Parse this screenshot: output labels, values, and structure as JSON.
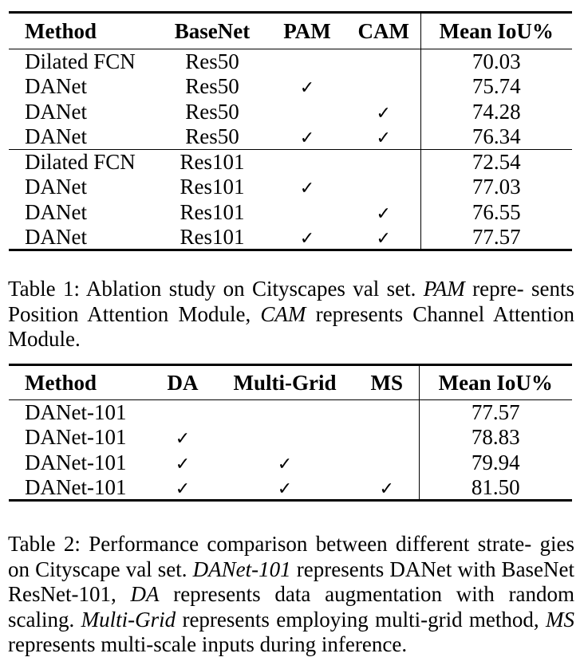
{
  "check_symbol": "✓",
  "table1": {
    "headers": [
      "Method",
      "BaseNet",
      "PAM",
      "CAM",
      "Mean IoU%"
    ],
    "rows": [
      {
        "method": "Dilated FCN",
        "basenet": "Res50",
        "pam": "",
        "cam": "",
        "miou": "70.03"
      },
      {
        "method": "DANet",
        "basenet": "Res50",
        "pam": "✓",
        "cam": "",
        "miou": "75.74"
      },
      {
        "method": "DANet",
        "basenet": "Res50",
        "pam": "",
        "cam": "✓",
        "miou": "74.28"
      },
      {
        "method": "DANet",
        "basenet": "Res50",
        "pam": "✓",
        "cam": "✓",
        "miou": "76.34"
      },
      {
        "method": "Dilated FCN",
        "basenet": "Res101",
        "pam": "",
        "cam": "",
        "miou": "72.54"
      },
      {
        "method": "DANet",
        "basenet": "Res101",
        "pam": "✓",
        "cam": "",
        "miou": "77.03"
      },
      {
        "method": "DANet",
        "basenet": "Res101",
        "pam": "",
        "cam": "✓",
        "miou": "76.55"
      },
      {
        "method": "DANet",
        "basenet": "Res101",
        "pam": "✓",
        "cam": "✓",
        "miou": "77.57"
      }
    ],
    "caption": {
      "label": "Table 1: Ablation study on Cityscapes val set.",
      "term1": "PAM",
      "text1": "repre-",
      "text1b": "sents Position Attention Module,",
      "term2": "CAM",
      "text2": "represents Channel Attention Module."
    }
  },
  "table2": {
    "headers": [
      "Method",
      "DA",
      "Multi-Grid",
      "MS",
      "Mean IoU%"
    ],
    "rows": [
      {
        "method": "DANet-101",
        "da": "",
        "mg": "",
        "ms": "",
        "miou": "77.57"
      },
      {
        "method": "DANet-101",
        "da": "✓",
        "mg": "",
        "ms": "",
        "miou": "78.83"
      },
      {
        "method": "DANet-101",
        "da": "✓",
        "mg": "✓",
        "ms": "",
        "miou": "79.94"
      },
      {
        "method": "DANet-101",
        "da": "✓",
        "mg": "✓",
        "ms": "✓",
        "miou": "81.50"
      }
    ],
    "caption": {
      "label": "Table 2: Performance comparison between different strate-",
      "label_b": "gies on Cityscape val set.",
      "term1": "DANet-101",
      "text1": "represents DANet with BaseNet ResNet-101,",
      "term2": "DA",
      "text2": "represents data augmentation with random scaling.",
      "term3": "Multi-Grid",
      "text3": "represents employing multi-grid method,",
      "term4": "MS",
      "text4": "represents multi-scale inputs during inference."
    }
  }
}
